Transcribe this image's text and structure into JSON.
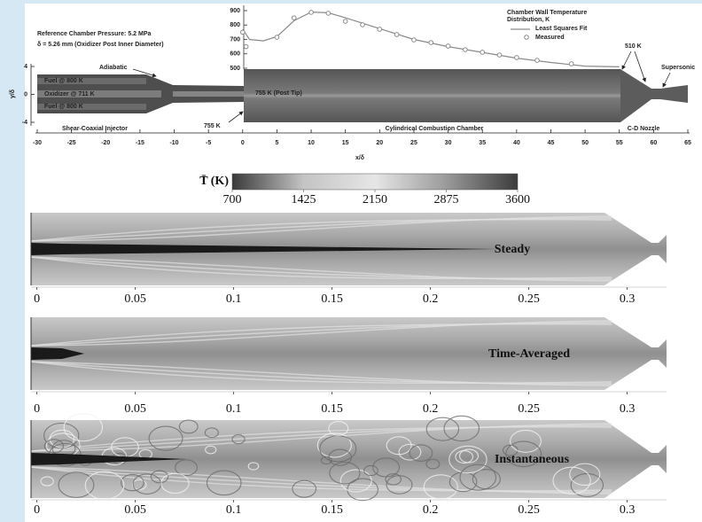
{
  "header": [
    "Reference Chamber Pressure: 5.2 MPa",
    "δ = 5.26 mm (Oxidizer Post Inner Diameter)"
  ],
  "chart_data": [
    {
      "type": "line",
      "title_lines": [
        "Chamber Wall Temperature",
        "Distribution, K"
      ],
      "xlim": [
        -30,
        65
      ],
      "ylim": [
        500,
        900
      ],
      "yticks": [
        500,
        600,
        700,
        800,
        900
      ],
      "series": [
        {
          "name": "Least Squares Fit",
          "type": "line",
          "color": "#8a8a8a",
          "x": [
            0,
            1,
            3,
            5,
            7.5,
            10,
            12.5,
            15,
            20,
            25,
            30,
            35,
            40,
            45,
            50,
            55
          ],
          "values": [
            770,
            700,
            690,
            720,
            830,
            890,
            885,
            850,
            775,
            700,
            650,
            610,
            570,
            540,
            515,
            510
          ]
        },
        {
          "name": "Measured",
          "type": "scatter",
          "color": "#8a8a8a",
          "x": [
            0,
            0.5,
            5,
            7.5,
            10,
            12.5,
            15,
            17.5,
            20,
            22.5,
            25,
            27.5,
            30,
            32.5,
            35,
            37.5,
            40,
            43,
            48
          ],
          "values": [
            750,
            650,
            715,
            850,
            888,
            882,
            826,
            802,
            771,
            734,
            697,
            678,
            654,
            629,
            611,
            592,
            574,
            555,
            531
          ]
        }
      ]
    },
    {
      "type": "schematic",
      "xlabel": "x/δ",
      "ylabel": "y/δ",
      "xlim": [
        -30,
        65
      ],
      "ylim": [
        -4,
        4
      ],
      "xticks": [
        -30,
        -25,
        -20,
        -15,
        -10,
        -5,
        0,
        5,
        10,
        15,
        20,
        25,
        30,
        35,
        40,
        45,
        50,
        55,
        60,
        65
      ],
      "yticks": [
        -4,
        0,
        4
      ],
      "annotations": [
        "Adiabatic",
        "Fuel @ 800 K",
        "Oxidizer @ 711 K",
        "Fuel @ 800 K",
        "755 K (Post Tip)",
        "755 K",
        "510 K",
        "Supersonic",
        "Shear-Coaxial Injector",
        "Cylindrical Combustion Chamber",
        "C-D Nozzle"
      ]
    },
    {
      "type": "colorbar",
      "label": "T̄ (K)",
      "xlim": [
        700,
        3600
      ],
      "xticks": [
        700,
        1425,
        2150,
        2875,
        3600
      ]
    },
    {
      "type": "contour",
      "title": "Steady",
      "xlim": [
        -0.003,
        0.32
      ],
      "xticks": [
        0,
        0.05,
        0.1,
        0.15,
        0.2,
        0.25,
        0.3
      ]
    },
    {
      "type": "contour",
      "title": "Time-Averaged",
      "xlim": [
        -0.003,
        0.32
      ],
      "xticks": [
        0,
        0.05,
        0.1,
        0.15,
        0.2,
        0.25,
        0.3
      ]
    },
    {
      "type": "contour",
      "title": "Instantaneous",
      "xlim": [
        -0.003,
        0.32
      ],
      "xticks": [
        0,
        0.05,
        0.1,
        0.15,
        0.2,
        0.25,
        0.3
      ]
    }
  ]
}
